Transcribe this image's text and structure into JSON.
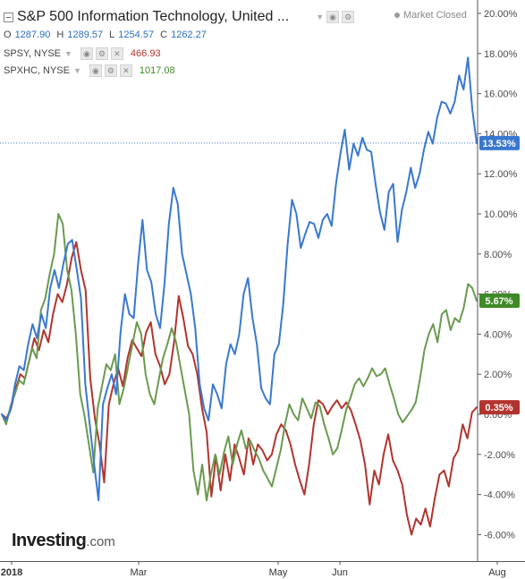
{
  "header": {
    "title": "S&P 500 Information Technology, United ...",
    "status": "Market Closed",
    "ohlc": {
      "o_label": "O",
      "o": "1287.90",
      "h_label": "H",
      "h": "1289.57",
      "l_label": "L",
      "l": "1254.57",
      "c_label": "C",
      "c": "1262.27"
    }
  },
  "overlays": [
    {
      "label": "SPSY, NYSE",
      "value": "466.93",
      "color": "#b2342e"
    },
    {
      "label": "SPXHC, NYSE",
      "value": "1017.08",
      "color": "#3f8a28"
    }
  ],
  "logo": {
    "main": "Investing",
    "suffix": ".com"
  },
  "colors": {
    "blue": "#3a78cf",
    "red": "#b2342e",
    "green": "#6a9a4f"
  },
  "chart_data": {
    "type": "line",
    "title": "S&P 500 Information Technology, United ...",
    "ylabel": "",
    "ylim": [
      -7,
      21
    ],
    "y_ticks": [
      "20.00%",
      "18.00%",
      "16.00%",
      "14.00%",
      "12.00%",
      "10.00%",
      "8.00%",
      "6.00%",
      "4.00%",
      "2.00%",
      "0.00%",
      "-2.00%",
      "-4.00%",
      "-6.00%"
    ],
    "x_ticks": [
      "2018",
      "Mar",
      "May",
      "Jun",
      "Aug"
    ],
    "grid": false,
    "last_value_labels": [
      "13.53%",
      "5.67%",
      "0.35%"
    ],
    "series": [
      {
        "key": "blue",
        "values": [
          0,
          -0.3,
          0.2,
          1.5,
          2.4,
          2.2,
          3.5,
          4.5,
          3.8,
          5.0,
          4.3,
          6.3,
          7.2,
          6.3,
          7.5,
          8.5,
          8.7,
          7.3,
          5.8,
          1.5,
          -0.5,
          -2.5,
          -4.3,
          0.5,
          1.3,
          2.0,
          1.0,
          4.1,
          6.0,
          5.0,
          4.8,
          7.5,
          9.7,
          7.2,
          6.6,
          5.0,
          4.3,
          6.5,
          9.5,
          11.3,
          10.5,
          8.0,
          7.0,
          6.0,
          4.3,
          1.5,
          0.3,
          -0.3,
          1.5,
          1.0,
          0.3,
          2.5,
          3.5,
          3.0,
          4.0,
          6.0,
          6.8,
          4.8,
          3.5,
          1.3,
          0.8,
          0.5,
          3.0,
          3.5,
          5.5,
          8.5,
          10.7,
          10.0,
          8.3,
          9.0,
          9.6,
          9.5,
          8.8,
          9.7,
          10.0,
          9.4,
          11.5,
          13.0,
          14.2,
          12.2,
          13.5,
          12.9,
          13.8,
          13.2,
          13.1,
          11.5,
          10.1,
          9.2,
          11.1,
          11.5,
          8.6,
          10.2,
          11.1,
          12.3,
          11.3,
          12.0,
          13.2,
          14.1,
          13.5,
          14.8,
          15.6,
          15.5,
          15.0,
          15.6,
          16.9,
          16.2,
          17.8,
          15.2,
          13.53
        ]
      },
      {
        "key": "red",
        "values": [
          0,
          -0.2,
          0.3,
          1.3,
          2.0,
          1.8,
          2.8,
          3.8,
          3.2,
          4.2,
          3.6,
          5.0,
          6.0,
          5.6,
          6.5,
          7.8,
          8.6,
          7.2,
          6.2,
          1.8,
          -0.2,
          -1.5,
          -3.4,
          0.5,
          1.5,
          2.3,
          1.4,
          2.8,
          3.7,
          3.3,
          2.9,
          4.1,
          4.6,
          3.0,
          2.4,
          1.5,
          2.0,
          3.6,
          5.9,
          4.8,
          3.4,
          3.0,
          2.0,
          0.3,
          -0.9,
          -4.1,
          -2.1,
          -3.8,
          -2.0,
          -3.3,
          -1.5,
          -2.2,
          -3.0,
          -1.2,
          -2.5,
          -1.5,
          -1.8,
          -2.3,
          -2.0,
          -1.0,
          -0.5,
          -0.8,
          -1.5,
          -2.5,
          -3.3,
          -4.0,
          -2.5,
          -0.5,
          0.7,
          0.5,
          0.0,
          0.4,
          0.7,
          0.3,
          0.6,
          0.2,
          -0.5,
          -1.3,
          -2.5,
          -4.5,
          -2.8,
          -3.5,
          -2.0,
          -1.0,
          -2.3,
          -2.8,
          -3.5,
          -5.0,
          -6.0,
          -5.2,
          -5.5,
          -4.7,
          -5.6,
          -4.2,
          -3.0,
          -2.8,
          -3.6,
          -2.2,
          -1.8,
          -0.5,
          -1.2,
          0.1,
          0.35
        ]
      },
      {
        "key": "green",
        "values": [
          0,
          -0.5,
          0.4,
          1.0,
          1.7,
          1.5,
          2.4,
          3.3,
          2.8,
          5.2,
          5.8,
          7.0,
          8.0,
          10.0,
          9.5,
          7.2,
          6.2,
          4.0,
          1.0,
          -0.1,
          -1.5,
          -2.9,
          0.3,
          1.4,
          2.5,
          2.2,
          3.0,
          0.5,
          1.3,
          2.4,
          3.5,
          4.6,
          4.0,
          2.0,
          1.0,
          0.5,
          1.7,
          2.8,
          3.5,
          4.3,
          3.6,
          2.4,
          1.2,
          0.0,
          -2.8,
          -4.0,
          -2.5,
          -4.3,
          -3.0,
          -2.0,
          -3.0,
          -1.9,
          -1.1,
          -2.5,
          -1.5,
          -0.8,
          -1.7,
          -1.3,
          -1.8,
          -2.2,
          -2.8,
          -3.2,
          -3.6,
          -2.7,
          -1.8,
          -0.5,
          0.5,
          0.0,
          -0.3,
          0.8,
          0.3,
          -0.2,
          0.6,
          0.4,
          -0.5,
          -1.2,
          -2.0,
          -1.7,
          -0.8,
          0.2,
          0.8,
          1.5,
          1.8,
          1.4,
          1.8,
          2.3,
          1.9,
          2.0,
          2.3,
          1.5,
          0.8,
          0.0,
          -0.4,
          -0.1,
          0.2,
          0.6,
          1.8,
          3.2,
          4.0,
          4.5,
          3.6,
          5.0,
          5.2,
          4.2,
          4.8,
          4.6,
          5.3,
          6.5,
          6.3,
          5.67
        ]
      }
    ]
  }
}
